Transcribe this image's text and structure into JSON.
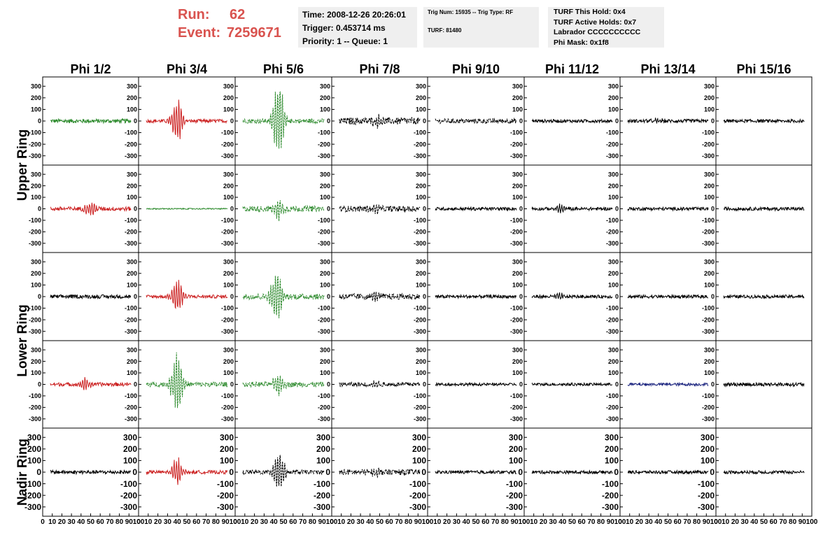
{
  "header": {
    "run_label": "Run:",
    "run_value": "62",
    "event_label": "Event:",
    "event_value": "7259671"
  },
  "info_time": {
    "time": "Time: 2008-12-26 20:26:01",
    "trigger": "Trigger: 0.453714 ms",
    "priority": "Priority: 1 -- Queue: 1"
  },
  "info_trig": {
    "trig": "Trig Num: 15935 -- Trig Type: RF",
    "turf": "TURF: 81480"
  },
  "info_turf": {
    "this_hold": "TURF This Hold: 0x4",
    "active_holds": "TURF Active Holds: 0x7",
    "labrador": "Labrador CCCCCCCCCC",
    "phi_mask": "Phi Mask: 0x1f8"
  },
  "chart_data": {
    "type": "line",
    "column_labels": [
      "Phi 1/2",
      "Phi 3/4",
      "Phi 5/6",
      "Phi 7/8",
      "Phi 9/10",
      "Phi 11/12",
      "Phi 13/14",
      "Phi 15/16"
    ],
    "row_labels": [
      "Upper Ring",
      "Lower Ring",
      "Nadir Ring"
    ],
    "ylim": [
      -380,
      380
    ],
    "y_ticks": [
      300,
      200,
      100,
      0,
      -100,
      -200,
      -300
    ],
    "xlim": [
      0,
      100
    ],
    "x_ticks": [
      0,
      10,
      20,
      30,
      40,
      50,
      60,
      70,
      80,
      90,
      100
    ],
    "colors": {
      "red": "#cc2222",
      "green": "#2e8b2e",
      "black": "#000000",
      "blue": "#1a237e"
    },
    "panels": [
      [
        {
          "color": "green",
          "dashed": false,
          "noise": 18,
          "pulse": 0,
          "center": 45
        },
        {
          "color": "red",
          "dashed": false,
          "noise": 15,
          "pulse": 210,
          "center": 40
        },
        {
          "color": "green",
          "dashed": true,
          "noise": 20,
          "pulse": 360,
          "center": 45
        },
        {
          "color": "black",
          "dashed": true,
          "noise": 30,
          "pulse": 40,
          "center": 48
        },
        {
          "color": "black",
          "dashed": true,
          "noise": 20,
          "pulse": 0,
          "center": 50
        },
        {
          "color": "black",
          "dashed": false,
          "noise": 14,
          "pulse": 0,
          "center": 50
        },
        {
          "color": "black",
          "dashed": false,
          "noise": 15,
          "pulse": 25,
          "center": 40
        },
        {
          "color": "black",
          "dashed": false,
          "noise": 14,
          "pulse": 0,
          "center": 50
        }
      ],
      [
        {
          "color": "red",
          "dashed": false,
          "noise": 18,
          "pulse": 70,
          "center": 50
        },
        {
          "color": "green",
          "dashed": false,
          "noise": 5,
          "pulse": 0,
          "center": 50
        },
        {
          "color": "green",
          "dashed": true,
          "noise": 25,
          "pulse": 90,
          "center": 45
        },
        {
          "color": "black",
          "dashed": true,
          "noise": 25,
          "pulse": 40,
          "center": 45
        },
        {
          "color": "black",
          "dashed": false,
          "noise": 14,
          "pulse": 0,
          "center": 50
        },
        {
          "color": "black",
          "dashed": false,
          "noise": 14,
          "pulse": 40,
          "center": 38
        },
        {
          "color": "black",
          "dashed": false,
          "noise": 14,
          "pulse": 0,
          "center": 50
        },
        {
          "color": "black",
          "dashed": false,
          "noise": 15,
          "pulse": 0,
          "center": 50
        }
      ],
      [
        {
          "color": "black",
          "dashed": false,
          "noise": 16,
          "pulse": 0,
          "center": 50
        },
        {
          "color": "red",
          "dashed": false,
          "noise": 15,
          "pulse": 170,
          "center": 40
        },
        {
          "color": "green",
          "dashed": true,
          "noise": 25,
          "pulse": 270,
          "center": 43
        },
        {
          "color": "black",
          "dashed": true,
          "noise": 25,
          "pulse": 30,
          "center": 45
        },
        {
          "color": "black",
          "dashed": false,
          "noise": 14,
          "pulse": 0,
          "center": 50
        },
        {
          "color": "black",
          "dashed": false,
          "noise": 14,
          "pulse": 25,
          "center": 38
        },
        {
          "color": "black",
          "dashed": false,
          "noise": 14,
          "pulse": 0,
          "center": 50
        },
        {
          "color": "black",
          "dashed": false,
          "noise": 14,
          "pulse": 0,
          "center": 50
        }
      ],
      [
        {
          "color": "red",
          "dashed": false,
          "noise": 16,
          "pulse": 60,
          "center": 45
        },
        {
          "color": "green",
          "dashed": true,
          "noise": 20,
          "pulse": 310,
          "center": 40
        },
        {
          "color": "green",
          "dashed": true,
          "noise": 22,
          "pulse": 90,
          "center": 45
        },
        {
          "color": "black",
          "dashed": true,
          "noise": 18,
          "pulse": 30,
          "center": 45
        },
        {
          "color": "black",
          "dashed": false,
          "noise": 12,
          "pulse": 0,
          "center": 50
        },
        {
          "color": "black",
          "dashed": false,
          "noise": 12,
          "pulse": 0,
          "center": 50
        },
        {
          "color": "blue",
          "dashed": false,
          "noise": 12,
          "pulse": 0,
          "center": 50
        },
        {
          "color": "black",
          "dashed": false,
          "noise": 16,
          "pulse": 0,
          "center": 50
        }
      ],
      [
        {
          "color": "black",
          "dashed": false,
          "noise": 16,
          "pulse": 0,
          "center": 50
        },
        {
          "color": "red",
          "dashed": false,
          "noise": 15,
          "pulse": 130,
          "center": 40
        },
        {
          "color": "black",
          "dashed": true,
          "noise": 18,
          "pulse": 200,
          "center": 45
        },
        {
          "color": "black",
          "dashed": true,
          "noise": 25,
          "pulse": 40,
          "center": 45
        },
        {
          "color": "black",
          "dashed": false,
          "noise": 14,
          "pulse": 0,
          "center": 50
        },
        {
          "color": "black",
          "dashed": false,
          "noise": 14,
          "pulse": 0,
          "center": 50
        },
        {
          "color": "black",
          "dashed": false,
          "noise": 14,
          "pulse": 0,
          "center": 50
        },
        {
          "color": "black",
          "dashed": false,
          "noise": 14,
          "pulse": 0,
          "center": 50
        }
      ]
    ]
  }
}
